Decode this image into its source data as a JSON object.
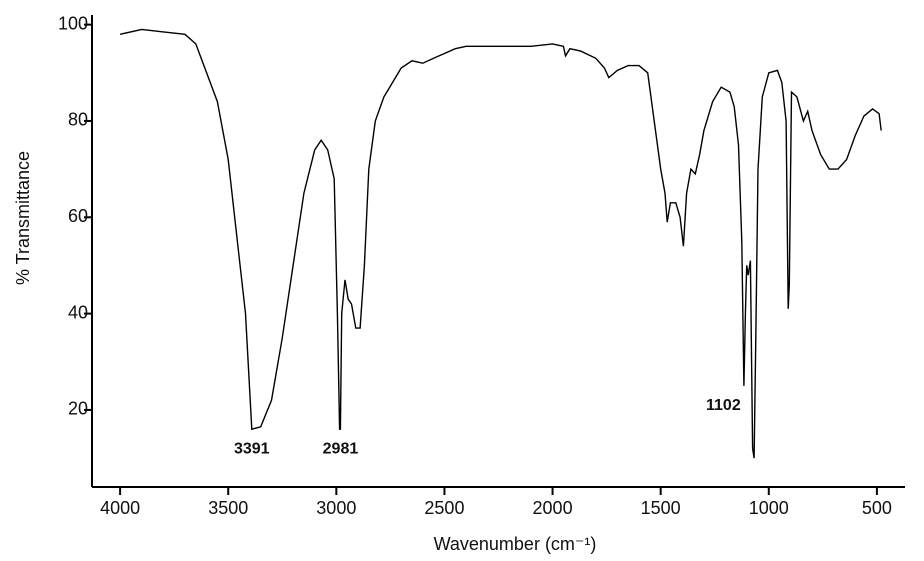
{
  "chart_data": {
    "type": "line",
    "x_label": "Wavenumber (cm⁻¹)",
    "y_label": "% Transmittance",
    "xlim": [
      4130,
      370
    ],
    "ylim": [
      4,
      102
    ],
    "xticks": [
      4000,
      3500,
      3000,
      2500,
      2000,
      1500,
      1000,
      500
    ],
    "yticks": [
      20,
      40,
      60,
      80,
      100
    ],
    "reversed_x": true,
    "grid": false,
    "x": [
      4000,
      3900,
      3800,
      3700,
      3650,
      3600,
      3550,
      3500,
      3450,
      3420,
      3391,
      3350,
      3300,
      3250,
      3200,
      3150,
      3100,
      3070,
      3040,
      3010,
      2995,
      2985,
      2981,
      2975,
      2960,
      2945,
      2930,
      2910,
      2890,
      2870,
      2850,
      2820,
      2780,
      2740,
      2700,
      2650,
      2600,
      2550,
      2500,
      2450,
      2400,
      2300,
      2200,
      2100,
      2000,
      1950,
      1940,
      1920,
      1870,
      1800,
      1760,
      1740,
      1700,
      1650,
      1600,
      1560,
      1530,
      1500,
      1480,
      1470,
      1455,
      1430,
      1410,
      1395,
      1380,
      1360,
      1340,
      1320,
      1300,
      1260,
      1220,
      1180,
      1160,
      1140,
      1125,
      1115,
      1108,
      1102,
      1095,
      1085,
      1075,
      1068,
      1060,
      1050,
      1030,
      1000,
      960,
      940,
      920,
      910,
      905,
      895,
      870,
      840,
      820,
      800,
      760,
      720,
      680,
      640,
      600,
      560,
      520,
      490,
      480
    ],
    "series": [
      {
        "name": "spectrum",
        "color": "#000000",
        "values": [
          98,
          99,
          98.5,
          98,
          96,
          90,
          84,
          72,
          52,
          40,
          16,
          16.5,
          22,
          35,
          50,
          65,
          74,
          76,
          74,
          68,
          40,
          16,
          16,
          40,
          47,
          43,
          42,
          37,
          37,
          50,
          70,
          80,
          85,
          88,
          91,
          92.5,
          92,
          93,
          94,
          95,
          95.5,
          95.5,
          95.5,
          95.5,
          96,
          95.5,
          93.5,
          95,
          94.5,
          93,
          91,
          89,
          90.5,
          91.5,
          91.5,
          90,
          80,
          70,
          65,
          59,
          63,
          63,
          60,
          54,
          65,
          70,
          69,
          73,
          78,
          84,
          87,
          86,
          83,
          75,
          55,
          25,
          40,
          50,
          48,
          51,
          12,
          10,
          35,
          70,
          85,
          90,
          90.5,
          88,
          80,
          41,
          46,
          86,
          85,
          80,
          82,
          78,
          73,
          70,
          70,
          72,
          77,
          81,
          82.5,
          81.5,
          78
        ]
      }
    ],
    "annotations": [
      {
        "label": "3391",
        "x": 3391,
        "y": 16
      },
      {
        "label": "2981",
        "x": 2981,
        "y": 16
      },
      {
        "label": "1102",
        "x": 1102,
        "y": 25
      }
    ]
  }
}
